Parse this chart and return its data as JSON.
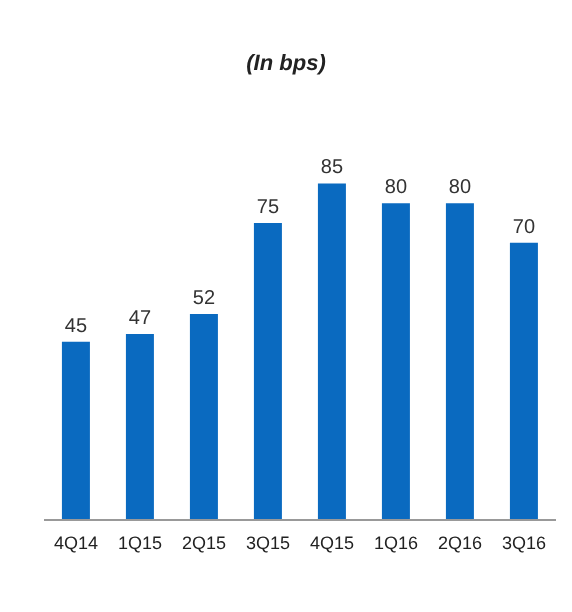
{
  "chart_data": {
    "type": "bar",
    "title": "(In bps)",
    "categories": [
      "4Q14",
      "1Q15",
      "2Q15",
      "3Q15",
      "4Q15",
      "1Q16",
      "2Q16",
      "3Q16"
    ],
    "values": [
      45,
      47,
      52,
      75,
      85,
      80,
      80,
      70
    ],
    "color": "#0a6ac0",
    "data_labels": true,
    "grid": false,
    "legend": false
  }
}
